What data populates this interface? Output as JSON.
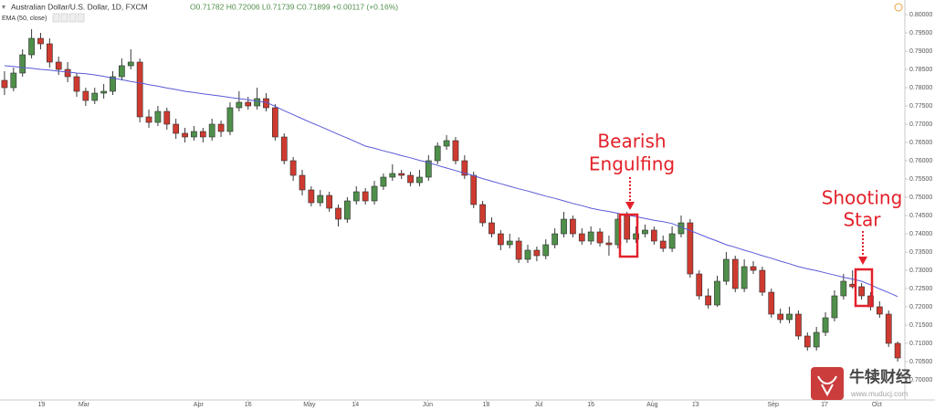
{
  "chart_data": {
    "type": "candlestick",
    "title": "Australian Dollar/U.S. Dollar, 1D, FXCM",
    "subtitle": "O0.71782 H0.72006 L0.71739 C0.71899 +0.00117 (+0.16%)",
    "up_color": "#4f8f4a",
    "down_color": "#cf3a30",
    "open": [
      0.782,
      0.78,
      0.784,
      0.789,
      0.7935,
      0.792,
      0.787,
      0.785,
      0.783,
      0.779,
      0.7765,
      0.7785,
      0.779,
      0.783,
      0.786,
      0.787,
      0.772,
      0.7705,
      0.7735,
      0.77,
      0.7675,
      0.7665,
      0.768,
      0.7665,
      0.77,
      0.768,
      0.7745,
      0.776,
      0.775,
      0.777,
      0.7745,
      0.7665,
      0.76,
      0.756,
      0.752,
      0.7485,
      0.7505,
      0.747,
      0.744,
      0.749,
      0.7515,
      0.749,
      0.753,
      0.7555,
      0.7565,
      0.756,
      0.754,
      0.7555,
      0.76,
      0.764,
      0.7655,
      0.76,
      0.756,
      0.748,
      0.743,
      0.74,
      0.737,
      0.738,
      0.733,
      0.7355,
      0.734,
      0.737,
      0.74,
      0.744,
      0.74,
      0.738,
      0.7405,
      0.7375,
      0.737,
      0.745,
      0.7385,
      0.74,
      0.741,
      0.738,
      0.736,
      0.74,
      0.743,
      0.729,
      0.723,
      0.7205,
      0.727,
      0.733,
      0.725,
      0.731,
      0.73,
      0.724,
      0.718,
      0.7165,
      0.718,
      0.712,
      0.709,
      0.713,
      0.717,
      0.723,
      0.7262,
      0.7255,
      0.723,
      0.72,
      0.718,
      0.71
    ],
    "high": [
      0.7845,
      0.7855,
      0.7905,
      0.796,
      0.795,
      0.7935,
      0.7885,
      0.787,
      0.784,
      0.78,
      0.78,
      0.781,
      0.7845,
      0.788,
      0.7905,
      0.788,
      0.774,
      0.775,
      0.7745,
      0.7715,
      0.769,
      0.7695,
      0.769,
      0.7715,
      0.771,
      0.776,
      0.779,
      0.7775,
      0.78,
      0.7785,
      0.7755,
      0.7675,
      0.761,
      0.7575,
      0.753,
      0.752,
      0.7515,
      0.748,
      0.75,
      0.753,
      0.7525,
      0.7545,
      0.7565,
      0.759,
      0.7575,
      0.757,
      0.7575,
      0.7615,
      0.765,
      0.767,
      0.7665,
      0.7615,
      0.757,
      0.749,
      0.7445,
      0.741,
      0.74,
      0.739,
      0.737,
      0.7365,
      0.7385,
      0.7415,
      0.746,
      0.745,
      0.7415,
      0.742,
      0.7415,
      0.7395,
      0.7455,
      0.746,
      0.742,
      0.7425,
      0.742,
      0.7395,
      0.742,
      0.745,
      0.744,
      0.73,
      0.725,
      0.7285,
      0.735,
      0.734,
      0.733,
      0.7325,
      0.731,
      0.725,
      0.7195,
      0.72,
      0.719,
      0.713,
      0.7145,
      0.7185,
      0.7245,
      0.729,
      0.73,
      0.7265,
      0.724,
      0.7215,
      0.719,
      0.7105
    ],
    "low": [
      0.778,
      0.779,
      0.783,
      0.788,
      0.7905,
      0.7855,
      0.7835,
      0.7815,
      0.7775,
      0.775,
      0.7755,
      0.777,
      0.778,
      0.782,
      0.785,
      0.7705,
      0.769,
      0.7695,
      0.7685,
      0.766,
      0.765,
      0.7655,
      0.765,
      0.7655,
      0.7665,
      0.767,
      0.7735,
      0.774,
      0.774,
      0.7735,
      0.7655,
      0.759,
      0.7545,
      0.7505,
      0.7475,
      0.7475,
      0.746,
      0.742,
      0.743,
      0.748,
      0.748,
      0.748,
      0.752,
      0.7545,
      0.755,
      0.753,
      0.753,
      0.7545,
      0.759,
      0.763,
      0.759,
      0.755,
      0.747,
      0.742,
      0.739,
      0.7355,
      0.736,
      0.732,
      0.732,
      0.7325,
      0.733,
      0.736,
      0.739,
      0.739,
      0.737,
      0.737,
      0.7365,
      0.734,
      0.736,
      0.7375,
      0.7375,
      0.739,
      0.737,
      0.735,
      0.735,
      0.739,
      0.728,
      0.722,
      0.7195,
      0.72,
      0.726,
      0.724,
      0.724,
      0.729,
      0.723,
      0.717,
      0.7155,
      0.7155,
      0.711,
      0.708,
      0.708,
      0.712,
      0.716,
      0.722,
      0.725,
      0.722,
      0.719,
      0.717,
      0.709,
      0.705
    ],
    "close": [
      0.78,
      0.784,
      0.789,
      0.7935,
      0.792,
      0.787,
      0.785,
      0.783,
      0.779,
      0.7765,
      0.7785,
      0.779,
      0.783,
      0.786,
      0.787,
      0.772,
      0.7705,
      0.7735,
      0.77,
      0.7675,
      0.7665,
      0.768,
      0.7665,
      0.77,
      0.768,
      0.7745,
      0.776,
      0.775,
      0.777,
      0.7745,
      0.7665,
      0.76,
      0.756,
      0.752,
      0.7485,
      0.7505,
      0.747,
      0.744,
      0.749,
      0.7515,
      0.749,
      0.753,
      0.7555,
      0.7565,
      0.756,
      0.754,
      0.7555,
      0.76,
      0.764,
      0.7655,
      0.76,
      0.756,
      0.748,
      0.743,
      0.74,
      0.737,
      0.738,
      0.733,
      0.7355,
      0.734,
      0.737,
      0.74,
      0.744,
      0.74,
      0.738,
      0.7405,
      0.7375,
      0.737,
      0.744,
      0.7385,
      0.74,
      0.741,
      0.738,
      0.736,
      0.74,
      0.743,
      0.729,
      0.723,
      0.7205,
      0.727,
      0.733,
      0.725,
      0.731,
      0.73,
      0.724,
      0.718,
      0.7165,
      0.718,
      0.712,
      0.709,
      0.713,
      0.717,
      0.723,
      0.727,
      0.7255,
      0.723,
      0.72,
      0.718,
      0.71,
      0.706
    ],
    "series": [
      {
        "name": "EMA (50, close)",
        "color": "#5a5ad8",
        "values": [
          0.786,
          0.7858,
          0.7855,
          0.7853,
          0.785,
          0.7848,
          0.7845,
          0.7843,
          0.784,
          0.7838,
          0.7835,
          0.7831,
          0.7826,
          0.7822,
          0.7817,
          0.7813,
          0.7808,
          0.7804,
          0.7799,
          0.7795,
          0.779,
          0.7787,
          0.7783,
          0.778,
          0.7777,
          0.7773,
          0.777,
          0.7767,
          0.7763,
          0.776,
          0.7749,
          0.7737,
          0.7726,
          0.7715,
          0.7704,
          0.7694,
          0.7683,
          0.7672,
          0.7662,
          0.7651,
          0.764,
          0.7634,
          0.7627,
          0.7621,
          0.7614,
          0.7608,
          0.7601,
          0.7595,
          0.7587,
          0.758,
          0.7573,
          0.7566,
          0.7559,
          0.7551,
          0.7544,
          0.7537,
          0.753,
          0.7523,
          0.7517,
          0.751,
          0.7503,
          0.7497,
          0.749,
          0.7483,
          0.7477,
          0.747,
          0.7465,
          0.7461,
          0.7456,
          0.7451,
          0.7447,
          0.7442,
          0.7437,
          0.7433,
          0.7428,
          0.7418,
          0.7409,
          0.7399,
          0.7389,
          0.738,
          0.737,
          0.7363,
          0.7355,
          0.7348,
          0.734,
          0.7333,
          0.7325,
          0.7318,
          0.731,
          0.7304,
          0.7299,
          0.7293,
          0.7287,
          0.7281,
          0.7276,
          0.727,
          0.726,
          0.7249,
          0.7239,
          0.7228
        ]
      }
    ],
    "xlim": [
      -0.5,
      99.8
    ],
    "xticks": [
      {
        "value": 4.1,
        "label": "19"
      },
      {
        "value": 8.8,
        "label": "Mar"
      },
      {
        "value": 21.5,
        "label": "Apr"
      },
      {
        "value": 27,
        "label": "16"
      },
      {
        "value": 33.8,
        "label": "May"
      },
      {
        "value": 38.9,
        "label": "14"
      },
      {
        "value": 46.9,
        "label": "Jun"
      },
      {
        "value": 53.4,
        "label": "18"
      },
      {
        "value": 59.2,
        "label": "Jul"
      },
      {
        "value": 65,
        "label": "16"
      },
      {
        "value": 71.8,
        "label": "Aug"
      },
      {
        "value": 76.6,
        "label": "13"
      },
      {
        "value": 85.2,
        "label": "Sep"
      },
      {
        "value": 90.9,
        "label": "17"
      },
      {
        "value": 96.7,
        "label": "Oct"
      }
    ],
    "ylim": [
      0.69475,
      0.802
    ],
    "yticks": [
      {
        "value": 0.8,
        "label": "0.80000"
      },
      {
        "value": 0.795,
        "label": "0.79500"
      },
      {
        "value": 0.79,
        "label": "0.79000"
      },
      {
        "value": 0.785,
        "label": "0.78500"
      },
      {
        "value": 0.78,
        "label": "0.78000"
      },
      {
        "value": 0.775,
        "label": "0.77500"
      },
      {
        "value": 0.77,
        "label": "0.77000"
      },
      {
        "value": 0.765,
        "label": "0.76500"
      },
      {
        "value": 0.76,
        "label": "0.76000"
      },
      {
        "value": 0.755,
        "label": "0.75500"
      },
      {
        "value": 0.75,
        "label": "0.75000"
      },
      {
        "value": 0.745,
        "label": "0.74500"
      },
      {
        "value": 0.74,
        "label": "0.74000"
      },
      {
        "value": 0.735,
        "label": "0.73500"
      },
      {
        "value": 0.73,
        "label": "0.73000"
      },
      {
        "value": 0.725,
        "label": "0.72500"
      },
      {
        "value": 0.72,
        "label": "0.72000"
      },
      {
        "value": 0.715,
        "label": "0.71500"
      },
      {
        "value": 0.71,
        "label": "0.71000"
      },
      {
        "value": 0.705,
        "label": "0.70500"
      },
      {
        "value": 0.7,
        "label": "0.70000"
      }
    ],
    "grid": false,
    "annotations": [
      [
        "Bearish",
        "Engulfing"
      ],
      [
        "Shooting",
        "Star"
      ]
    ]
  },
  "watermark": {
    "name": "牛犊财经",
    "url": "www.muducj.com"
  }
}
